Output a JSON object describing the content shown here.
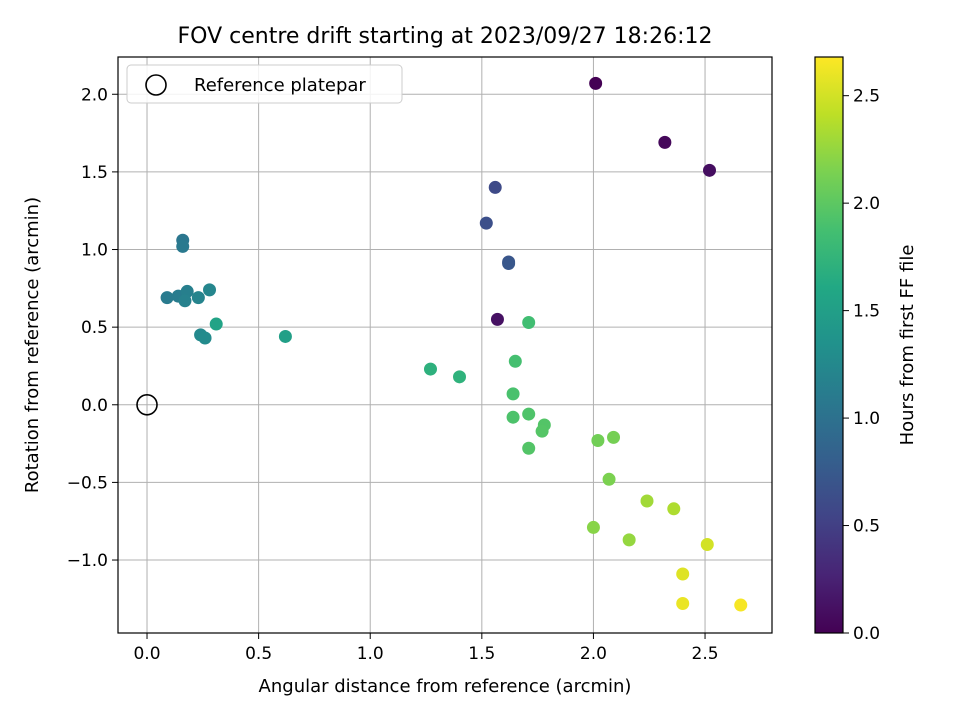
{
  "chart_data": {
    "type": "scatter",
    "title": "FOV centre drift starting at 2023/09/27 18:26:12",
    "xlabel": "Angular distance from reference (arcmin)",
    "ylabel": "Rotation from reference (arcmin)",
    "xlim": [
      -0.13,
      2.8
    ],
    "ylim": [
      -1.47,
      2.24
    ],
    "xticks": [
      0.0,
      0.5,
      1.0,
      1.5,
      2.0,
      2.5
    ],
    "xtick_labels": [
      "0.0",
      "0.5",
      "1.0",
      "1.5",
      "2.0",
      "2.5"
    ],
    "yticks": [
      -1.0,
      -0.5,
      0.0,
      0.5,
      1.0,
      1.5,
      2.0
    ],
    "ytick_labels": [
      "−1.0",
      "−0.5",
      "0.0",
      "0.5",
      "1.0",
      "1.5",
      "2.0"
    ],
    "grid": true,
    "legend": {
      "placement": "upper-left",
      "entries": [
        {
          "label": "Reference platepar",
          "marker": "open-circle"
        }
      ]
    },
    "colorbar": {
      "label": "Hours from first FF file",
      "colormap": "viridis",
      "range": [
        0.0,
        2.68
      ],
      "ticks": [
        0.0,
        0.5,
        1.0,
        1.5,
        2.0,
        2.5
      ],
      "tick_labels": [
        "0.0",
        "0.5",
        "1.0",
        "1.5",
        "2.0",
        "2.5"
      ]
    },
    "reference_point": {
      "x": 0.0,
      "y": 0.0
    },
    "points": [
      {
        "x": 2.01,
        "y": 2.07,
        "hours": 0.0
      },
      {
        "x": 2.32,
        "y": 1.69,
        "hours": 0.05
      },
      {
        "x": 2.52,
        "y": 1.51,
        "hours": 0.1
      },
      {
        "x": 1.57,
        "y": 0.55,
        "hours": 0.12
      },
      {
        "x": 1.56,
        "y": 1.4,
        "hours": 0.6
      },
      {
        "x": 1.52,
        "y": 1.17,
        "hours": 0.65
      },
      {
        "x": 1.62,
        "y": 0.92,
        "hours": 0.7
      },
      {
        "x": 1.62,
        "y": 0.91,
        "hours": 0.72
      },
      {
        "x": 0.16,
        "y": 1.06,
        "hours": 1.05
      },
      {
        "x": 0.16,
        "y": 1.02,
        "hours": 1.08
      },
      {
        "x": 0.09,
        "y": 0.69,
        "hours": 1.1
      },
      {
        "x": 0.14,
        "y": 0.7,
        "hours": 1.12
      },
      {
        "x": 0.18,
        "y": 0.73,
        "hours": 1.15
      },
      {
        "x": 0.17,
        "y": 0.67,
        "hours": 1.17
      },
      {
        "x": 0.23,
        "y": 0.69,
        "hours": 1.2
      },
      {
        "x": 0.28,
        "y": 0.74,
        "hours": 1.22
      },
      {
        "x": 0.24,
        "y": 0.45,
        "hours": 1.25
      },
      {
        "x": 0.26,
        "y": 0.43,
        "hours": 1.28
      },
      {
        "x": 0.31,
        "y": 0.52,
        "hours": 1.55
      },
      {
        "x": 0.62,
        "y": 0.44,
        "hours": 1.5
      },
      {
        "x": 1.27,
        "y": 0.23,
        "hours": 1.7
      },
      {
        "x": 1.4,
        "y": 0.18,
        "hours": 1.72
      },
      {
        "x": 1.71,
        "y": 0.53,
        "hours": 1.85
      },
      {
        "x": 1.65,
        "y": 0.28,
        "hours": 1.88
      },
      {
        "x": 1.64,
        "y": 0.07,
        "hours": 1.9
      },
      {
        "x": 1.64,
        "y": -0.08,
        "hours": 1.92
      },
      {
        "x": 1.71,
        "y": -0.06,
        "hours": 1.93
      },
      {
        "x": 1.78,
        "y": -0.13,
        "hours": 1.95
      },
      {
        "x": 1.77,
        "y": -0.17,
        "hours": 1.96
      },
      {
        "x": 1.71,
        "y": -0.28,
        "hours": 1.95
      },
      {
        "x": 2.02,
        "y": -0.23,
        "hours": 2.1
      },
      {
        "x": 2.09,
        "y": -0.21,
        "hours": 2.12
      },
      {
        "x": 2.07,
        "y": -0.48,
        "hours": 2.15
      },
      {
        "x": 2.0,
        "y": -0.79,
        "hours": 2.2
      },
      {
        "x": 2.16,
        "y": -0.87,
        "hours": 2.25
      },
      {
        "x": 2.24,
        "y": -0.62,
        "hours": 2.3
      },
      {
        "x": 2.36,
        "y": -0.67,
        "hours": 2.35
      },
      {
        "x": 2.51,
        "y": -0.9,
        "hours": 2.5
      },
      {
        "x": 2.4,
        "y": -1.09,
        "hours": 2.55
      },
      {
        "x": 2.4,
        "y": -1.28,
        "hours": 2.6
      },
      {
        "x": 2.66,
        "y": -1.29,
        "hours": 2.65
      }
    ]
  }
}
